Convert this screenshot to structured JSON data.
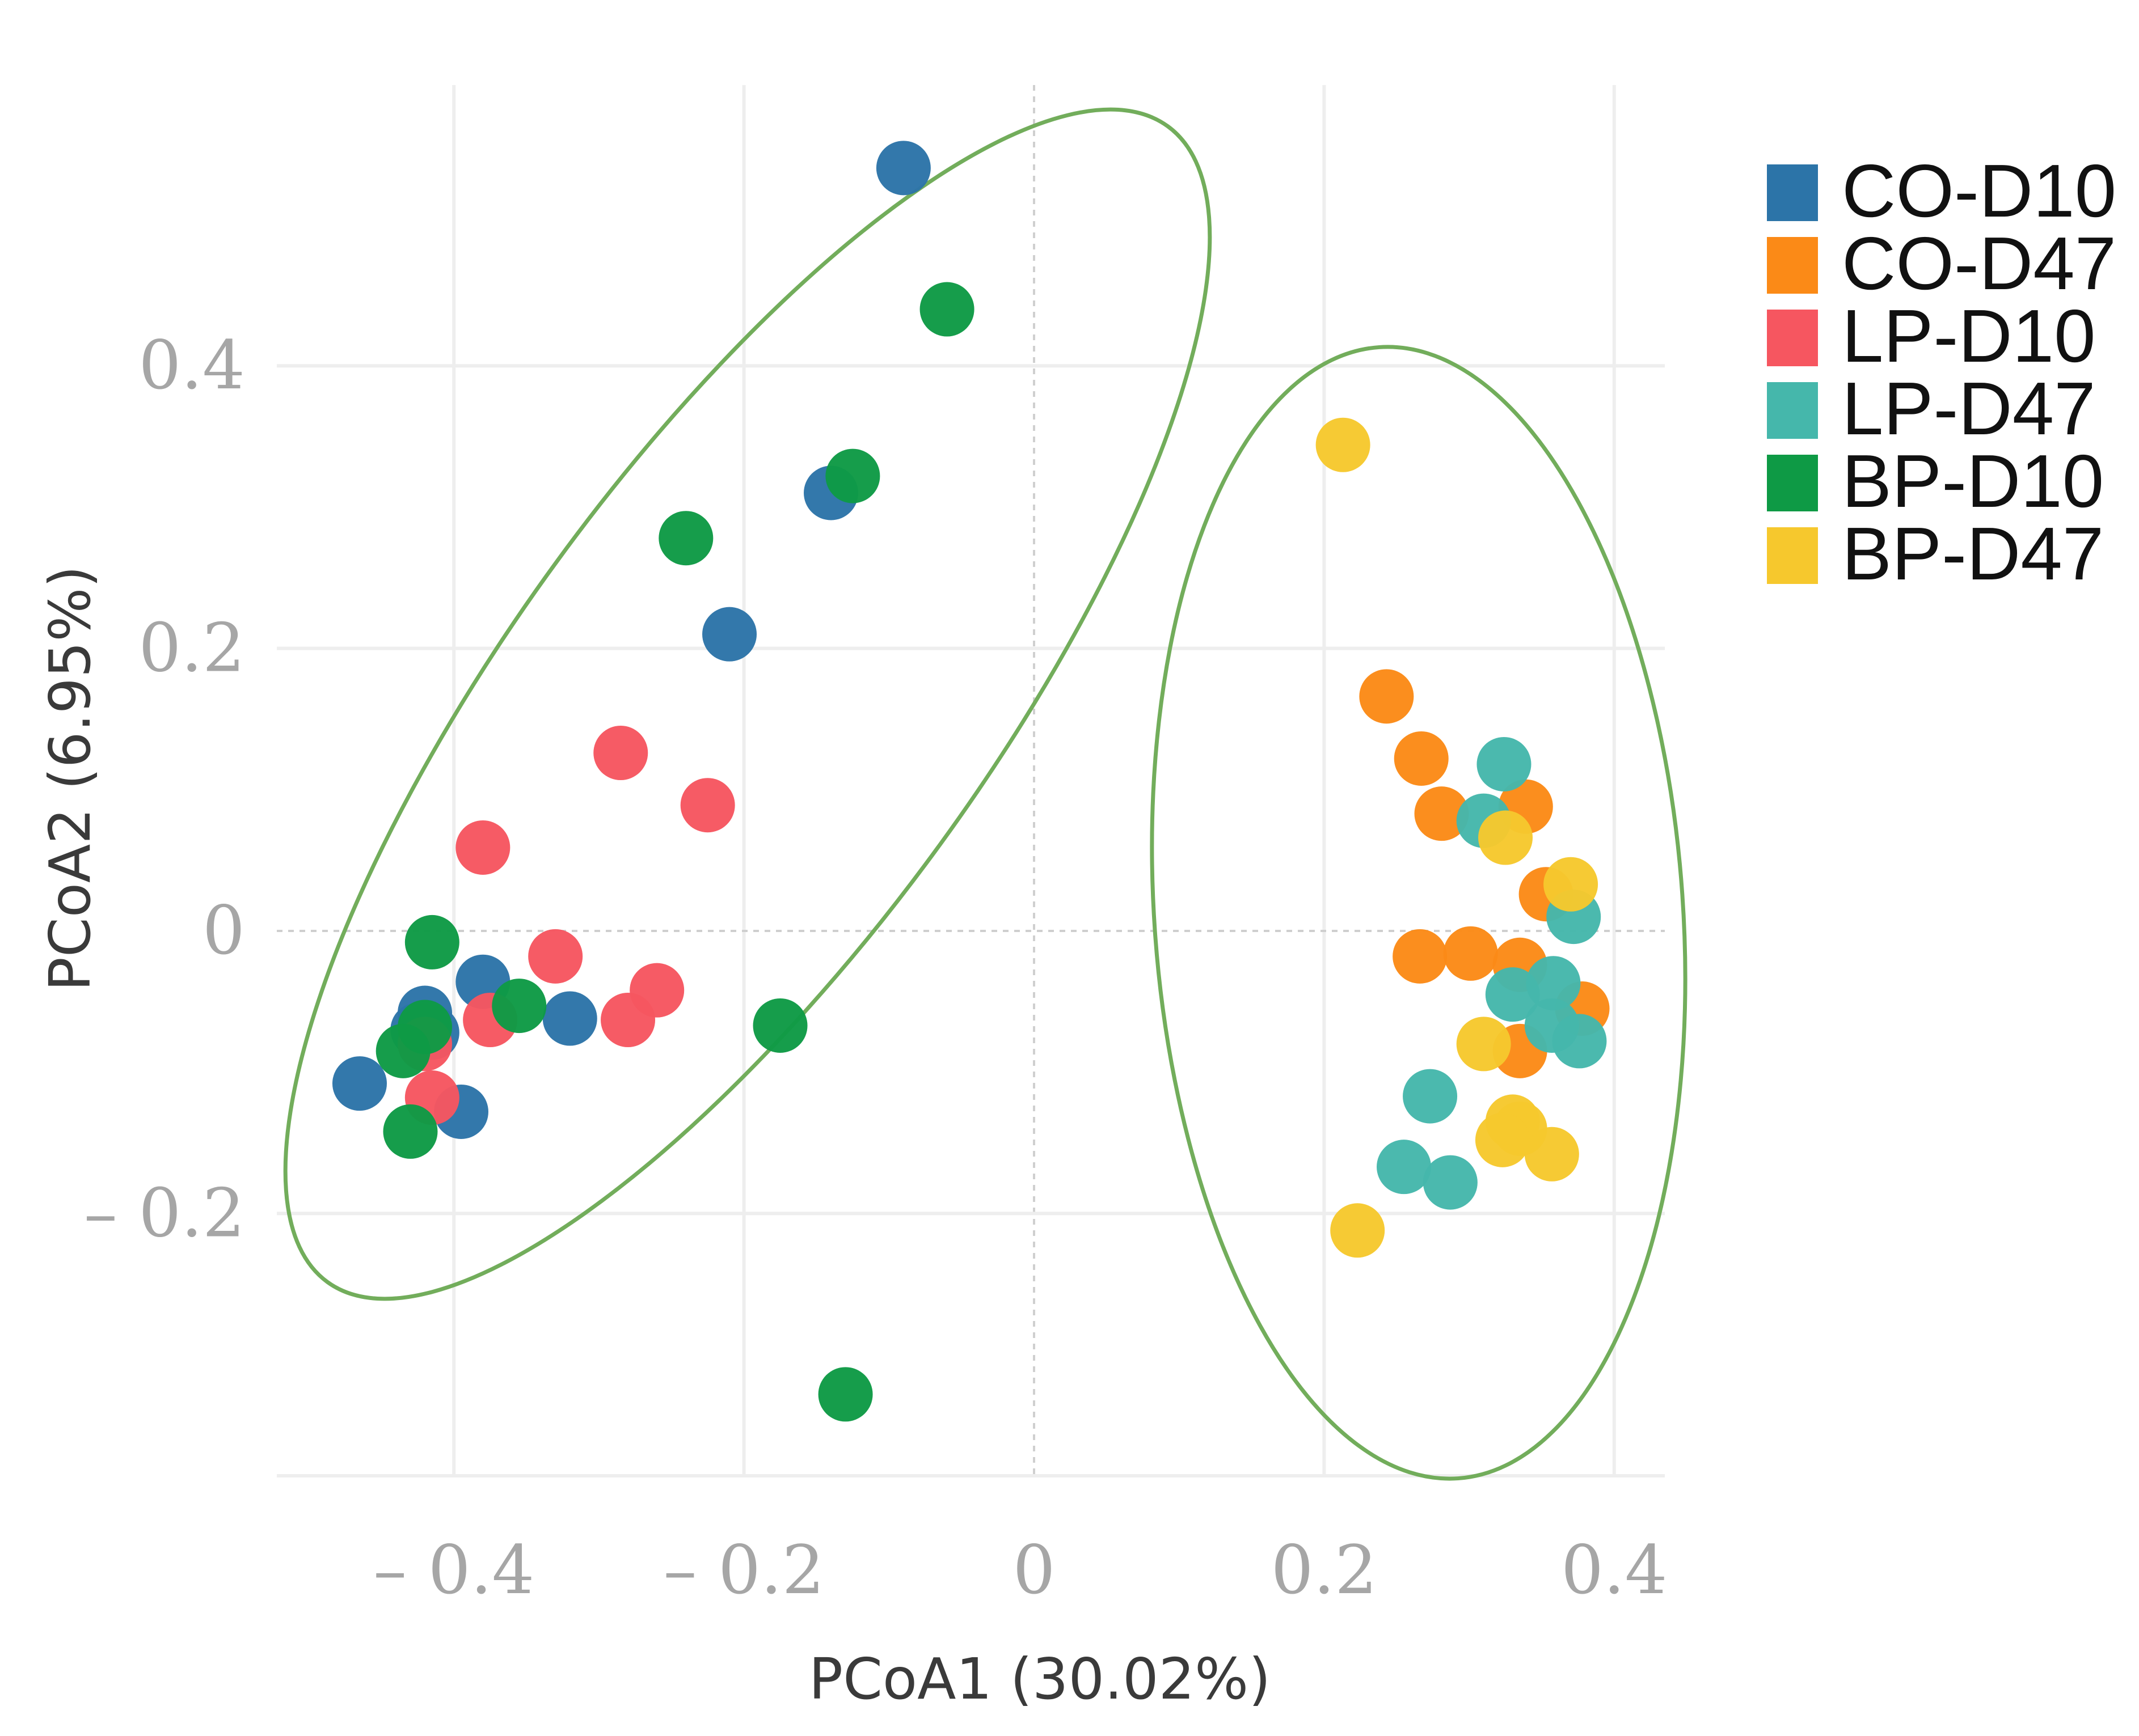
{
  "chart_data": {
    "type": "scatter",
    "title": "",
    "xlabel": "PCoA1 (30.02%)",
    "ylabel": "PCoA2 (6.95%)",
    "xlim": [
      -0.52,
      0.43
    ],
    "ylim": [
      -0.37,
      0.58
    ],
    "xticks": [
      -0.4,
      -0.2,
      0,
      0.2,
      0.4
    ],
    "yticks": [
      0.4,
      0.2,
      0,
      -0.2
    ],
    "xtick_labels": [
      "– 0.4",
      "– 0.2",
      "0",
      "0.2",
      "0.4"
    ],
    "ytick_labels": [
      "0.4",
      "0.2",
      "0",
      "– 0.2"
    ],
    "grid": true,
    "legend_position": "right",
    "series": [
      {
        "name": "CO-D10",
        "color": "#2c74a8",
        "points": [
          [
            -0.09,
            0.54
          ],
          [
            -0.14,
            0.31
          ],
          [
            -0.21,
            0.21
          ],
          [
            -0.38,
            -0.036
          ],
          [
            -0.32,
            -0.062
          ],
          [
            -0.42,
            -0.058
          ],
          [
            -0.425,
            -0.07
          ],
          [
            -0.395,
            -0.128
          ],
          [
            -0.465,
            -0.108
          ],
          [
            -0.415,
            -0.072
          ]
        ]
      },
      {
        "name": "CO-D47",
        "color": "#fb8a17",
        "points": [
          [
            0.243,
            0.166
          ],
          [
            0.267,
            0.122
          ],
          [
            0.281,
            0.083
          ],
          [
            0.339,
            0.088
          ],
          [
            0.353,
            0.026
          ],
          [
            0.266,
            -0.018
          ],
          [
            0.301,
            -0.016
          ],
          [
            0.335,
            -0.024
          ],
          [
            0.378,
            -0.055
          ],
          [
            0.335,
            -0.085
          ]
        ]
      },
      {
        "name": "LP-D10",
        "color": "#f65660",
        "points": [
          [
            -0.285,
            0.126
          ],
          [
            -0.225,
            0.089
          ],
          [
            -0.38,
            0.059
          ],
          [
            -0.33,
            -0.018
          ],
          [
            -0.26,
            -0.042
          ],
          [
            -0.28,
            -0.063
          ],
          [
            -0.375,
            -0.063
          ],
          [
            -0.415,
            -0.118
          ],
          [
            -0.42,
            -0.08
          ]
        ]
      },
      {
        "name": "LP-D47",
        "color": "#45b7ab",
        "points": [
          [
            0.324,
            0.118
          ],
          [
            0.31,
            0.078
          ],
          [
            0.372,
            0.01
          ],
          [
            0.33,
            -0.045
          ],
          [
            0.358,
            -0.037
          ],
          [
            0.357,
            -0.067
          ],
          [
            0.376,
            -0.078
          ],
          [
            0.273,
            -0.117
          ],
          [
            0.255,
            -0.167
          ],
          [
            0.287,
            -0.178
          ]
        ]
      },
      {
        "name": "BP-D10",
        "color": "#0e9a45",
        "points": [
          [
            -0.06,
            0.44
          ],
          [
            -0.125,
            0.322
          ],
          [
            -0.24,
            0.278
          ],
          [
            -0.415,
            -0.008
          ],
          [
            -0.355,
            -0.053
          ],
          [
            -0.175,
            -0.067
          ],
          [
            -0.42,
            -0.068
          ],
          [
            -0.435,
            -0.085
          ],
          [
            -0.43,
            -0.142
          ],
          [
            -0.13,
            -0.328
          ]
        ]
      },
      {
        "name": "BP-D47",
        "color": "#f6c82d",
        "points": [
          [
            0.213,
            0.344
          ],
          [
            0.325,
            0.066
          ],
          [
            0.37,
            0.033
          ],
          [
            0.31,
            -0.08
          ],
          [
            0.33,
            -0.135
          ],
          [
            0.335,
            -0.14
          ],
          [
            0.323,
            -0.148
          ],
          [
            0.357,
            -0.158
          ],
          [
            0.223,
            -0.212
          ]
        ]
      }
    ]
  }
}
